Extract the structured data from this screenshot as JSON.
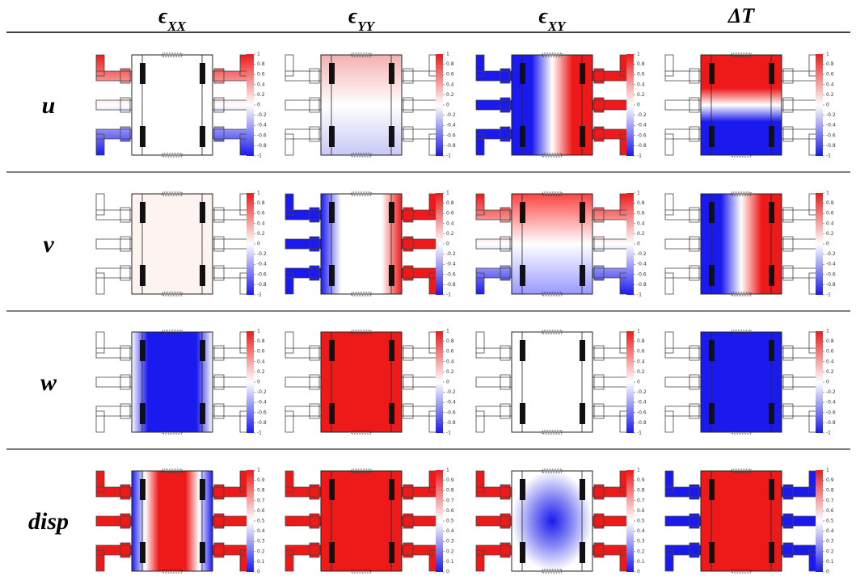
{
  "columns": [
    {
      "symbol": "ϵ",
      "subscript": "XX"
    },
    {
      "symbol": "ϵ",
      "subscript": "YY"
    },
    {
      "symbol": "ϵ",
      "subscript": "XY"
    },
    {
      "symbol": "ΔT"
    }
  ],
  "rows": [
    {
      "label": "u",
      "colorbar_ticks": [
        1,
        0.8,
        0.6,
        0.4,
        0.2,
        0,
        -0.2,
        -0.4,
        -0.6,
        -0.8,
        -1
      ]
    },
    {
      "label": "v",
      "colorbar_ticks": [
        1,
        0.8,
        0.6,
        0.4,
        0.2,
        0,
        -0.2,
        -0.4,
        -0.6,
        -0.8,
        -1
      ]
    },
    {
      "label": "w",
      "colorbar_ticks": [
        1,
        0.8,
        0.6,
        0.4,
        0.2,
        0,
        -0.2,
        -0.4,
        -0.6,
        -0.8,
        -1
      ]
    },
    {
      "label": "disp",
      "colorbar_ticks": [
        1,
        0.9,
        0.8,
        0.7,
        0.6,
        0.5,
        0.4,
        0.3,
        0.2,
        0.1,
        0
      ]
    }
  ]
}
